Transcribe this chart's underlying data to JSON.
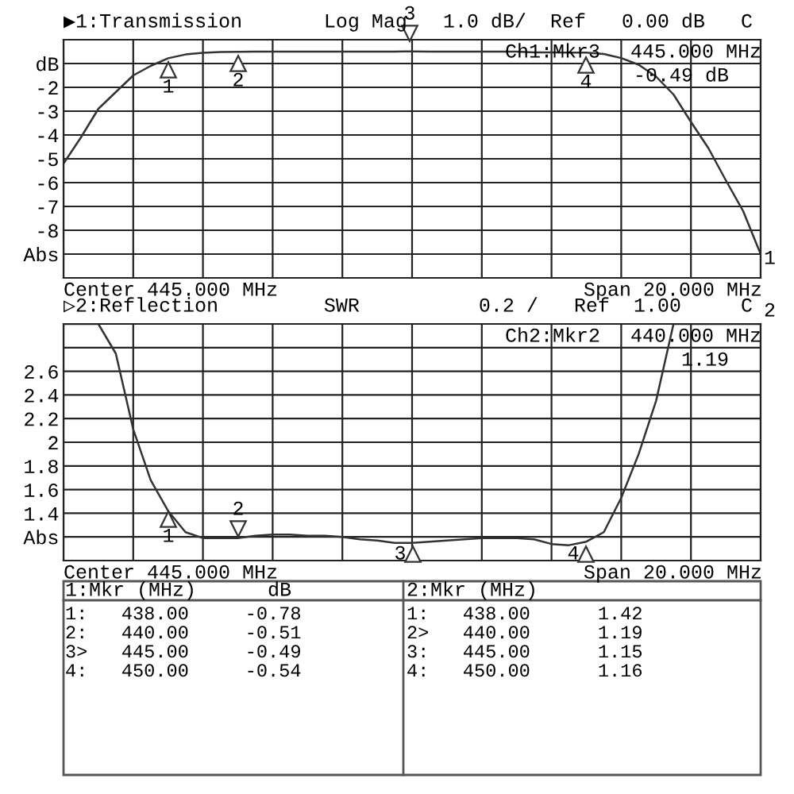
{
  "chart_data": [
    {
      "type": "line",
      "title": "▶1:Transmission",
      "subtitle": "Log Mag   1.0 dB/  Ref   0.00 dB   C",
      "categories": [
        null,
        null,
        null,
        null,
        null,
        null,
        null,
        null,
        null,
        null,
        null,
        null,
        null,
        null,
        null,
        null,
        null,
        null,
        null,
        null,
        null,
        null,
        null,
        null,
        null,
        null,
        null,
        null,
        null,
        null,
        null,
        null,
        null,
        null,
        null,
        null,
        null,
        null,
        null,
        null,
        null
      ],
      "series": [
        {
          "color": "#333333",
          "values": [
            -5.2,
            -4.1,
            -2.9,
            -2.2,
            -1.5,
            -1.1,
            -0.78,
            -0.62,
            -0.55,
            -0.52,
            -0.51,
            -0.5,
            -0.5,
            -0.5,
            -0.5,
            -0.5,
            -0.5,
            -0.5,
            -0.5,
            -0.5,
            -0.49,
            -0.5,
            -0.5,
            -0.5,
            -0.5,
            -0.5,
            -0.5,
            -0.53,
            -0.53,
            -0.54,
            -0.54,
            -0.6,
            -0.77,
            -1.05,
            -1.55,
            -2.3,
            -3.45,
            -4.55,
            -5.9,
            -7.2,
            -9.0
          ]
        }
      ],
      "ylim": [
        -10,
        0
      ],
      "yticks": [
        {
          "value": 0,
          "label": null
        },
        {
          "value": -1,
          "label": "dB"
        },
        -2,
        -3,
        -4,
        -5,
        -6,
        -7,
        -8,
        {
          "value": -9,
          "label": "Abs"
        },
        {
          "value": -10,
          "label": null
        }
      ],
      "tick_labels": "y",
      "grid": true,
      "annotations": [
        "Ch1:Mkr3",
        "445.000 MHz",
        "-0.49 dB",
        "Center 445.000 MHz",
        "Span 20.000 MHz",
        "1",
        "1:Mkr (MHz)      dB",
        "1:   438.00     -0.78",
        "2:   440.00     -0.51",
        "3>   445.00     -0.49",
        "4:   450.00     -0.54",
        "1",
        "2",
        "3",
        "4"
      ]
    },
    {
      "type": "line",
      "title": "▷2:Reflection",
      "subtitle": "SWR          0.2 /   Ref  1.00     C",
      "categories": [
        null,
        null,
        null,
        null,
        null,
        null,
        null,
        null,
        null,
        null,
        null,
        null,
        null,
        null,
        null,
        null,
        null,
        null,
        null,
        null,
        null,
        null,
        null,
        null,
        null,
        null,
        null,
        null,
        null,
        null,
        null,
        null,
        null,
        null,
        null,
        null,
        null,
        null,
        null,
        null,
        null
      ],
      "series": [
        {
          "color": "#333333",
          "values": [
            3.0,
            3.0,
            3.0,
            2.75,
            2.11,
            1.68,
            1.42,
            1.24,
            1.19,
            1.19,
            1.19,
            1.21,
            1.22,
            1.22,
            1.21,
            1.21,
            1.2,
            1.18,
            1.17,
            1.15,
            1.15,
            1.16,
            1.17,
            1.18,
            1.19,
            1.19,
            1.19,
            1.18,
            1.14,
            1.13,
            1.16,
            1.24,
            1.53,
            1.9,
            2.35,
            3.0,
            3.0,
            3.0,
            3.0,
            3.0,
            3.0
          ]
        }
      ],
      "ylim": [
        1.0,
        3.0
      ],
      "yticks": [
        {
          "value": 3.0,
          "label": null
        },
        {
          "value": 2.8,
          "label": null
        },
        2.6,
        2.4,
        2.2,
        2,
        1.8,
        1.6,
        1.4,
        {
          "value": 1.2,
          "label": "Abs"
        },
        {
          "value": 1.0,
          "label": null
        }
      ],
      "tick_labels": "y",
      "grid": true,
      "annotations": [
        "Ch2:Mkr2",
        "440.000 MHz",
        "1.19",
        "Center 445.000 MHz",
        "Span 20.000 MHz",
        "2",
        "2:Mkr (MHz)",
        "1:   438.00      1.42",
        "2>   440.00      1.19",
        "3:   445.00      1.15",
        "4:   450.00      1.16",
        "1",
        "2",
        "3",
        "4"
      ]
    }
  ]
}
